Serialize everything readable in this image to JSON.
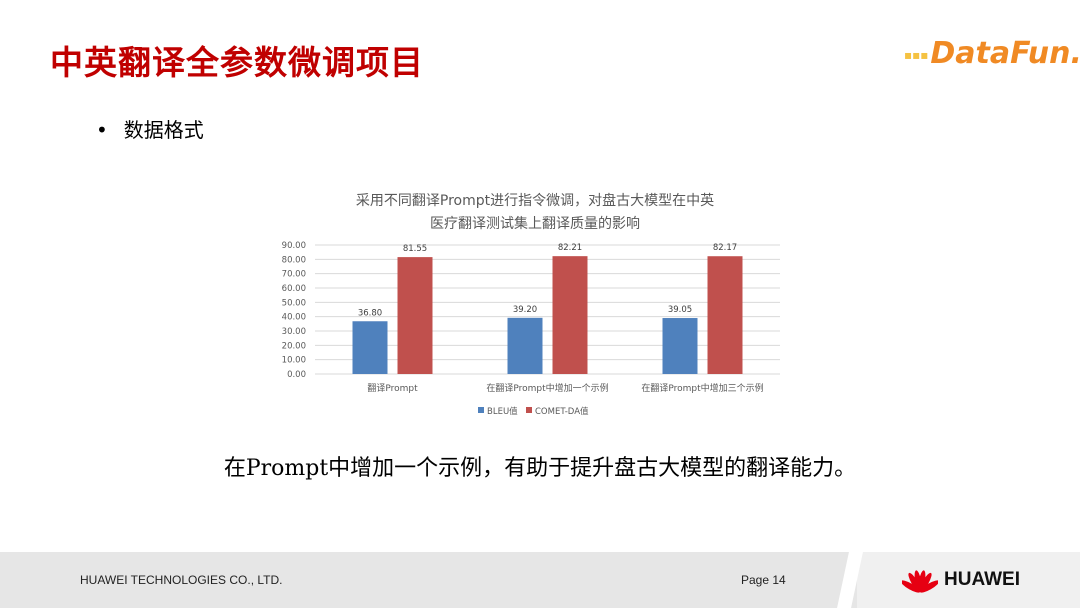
{
  "slide": {
    "title": "中英翻译全参数微调项目",
    "logo": "DataFun.",
    "bullet": "数据格式",
    "conclusion": "在Prompt中增加一个示例，有助于提升盘古大模型的翻译能力。"
  },
  "footer": {
    "company": "HUAWEI TECHNOLOGIES CO., LTD.",
    "page": "Page 14",
    "brand": "HUAWEI"
  },
  "colors": {
    "title": "#c00000",
    "bleu": "#4f81bd",
    "comet": "#c0504d"
  },
  "chart_data": {
    "type": "bar",
    "title": "采用不同翻译Prompt进行指令微调，对盘古大模型在中英医疗翻译测试集上翻译质量的影响",
    "title_lines": [
      "采用不同翻译Prompt进行指令微调，对盘古大模型在中英",
      "医疗翻译测试集上翻译质量的影响"
    ],
    "categories": [
      "翻译Prompt",
      "在翻译Prompt中增加一个示例",
      "在翻译Prompt中增加三个示例"
    ],
    "series": [
      {
        "name": "BLEU值",
        "values": [
          36.8,
          39.2,
          39.05
        ],
        "color": "#4f81bd"
      },
      {
        "name": "COMET-DA值",
        "values": [
          81.55,
          82.21,
          82.17
        ],
        "color": "#c0504d"
      }
    ],
    "yticks": [
      "0.00",
      "10.00",
      "20.00",
      "30.00",
      "40.00",
      "50.00",
      "60.00",
      "70.00",
      "80.00",
      "90.00"
    ],
    "ylim": [
      0,
      90
    ],
    "grid": true,
    "legend": "bottom"
  }
}
